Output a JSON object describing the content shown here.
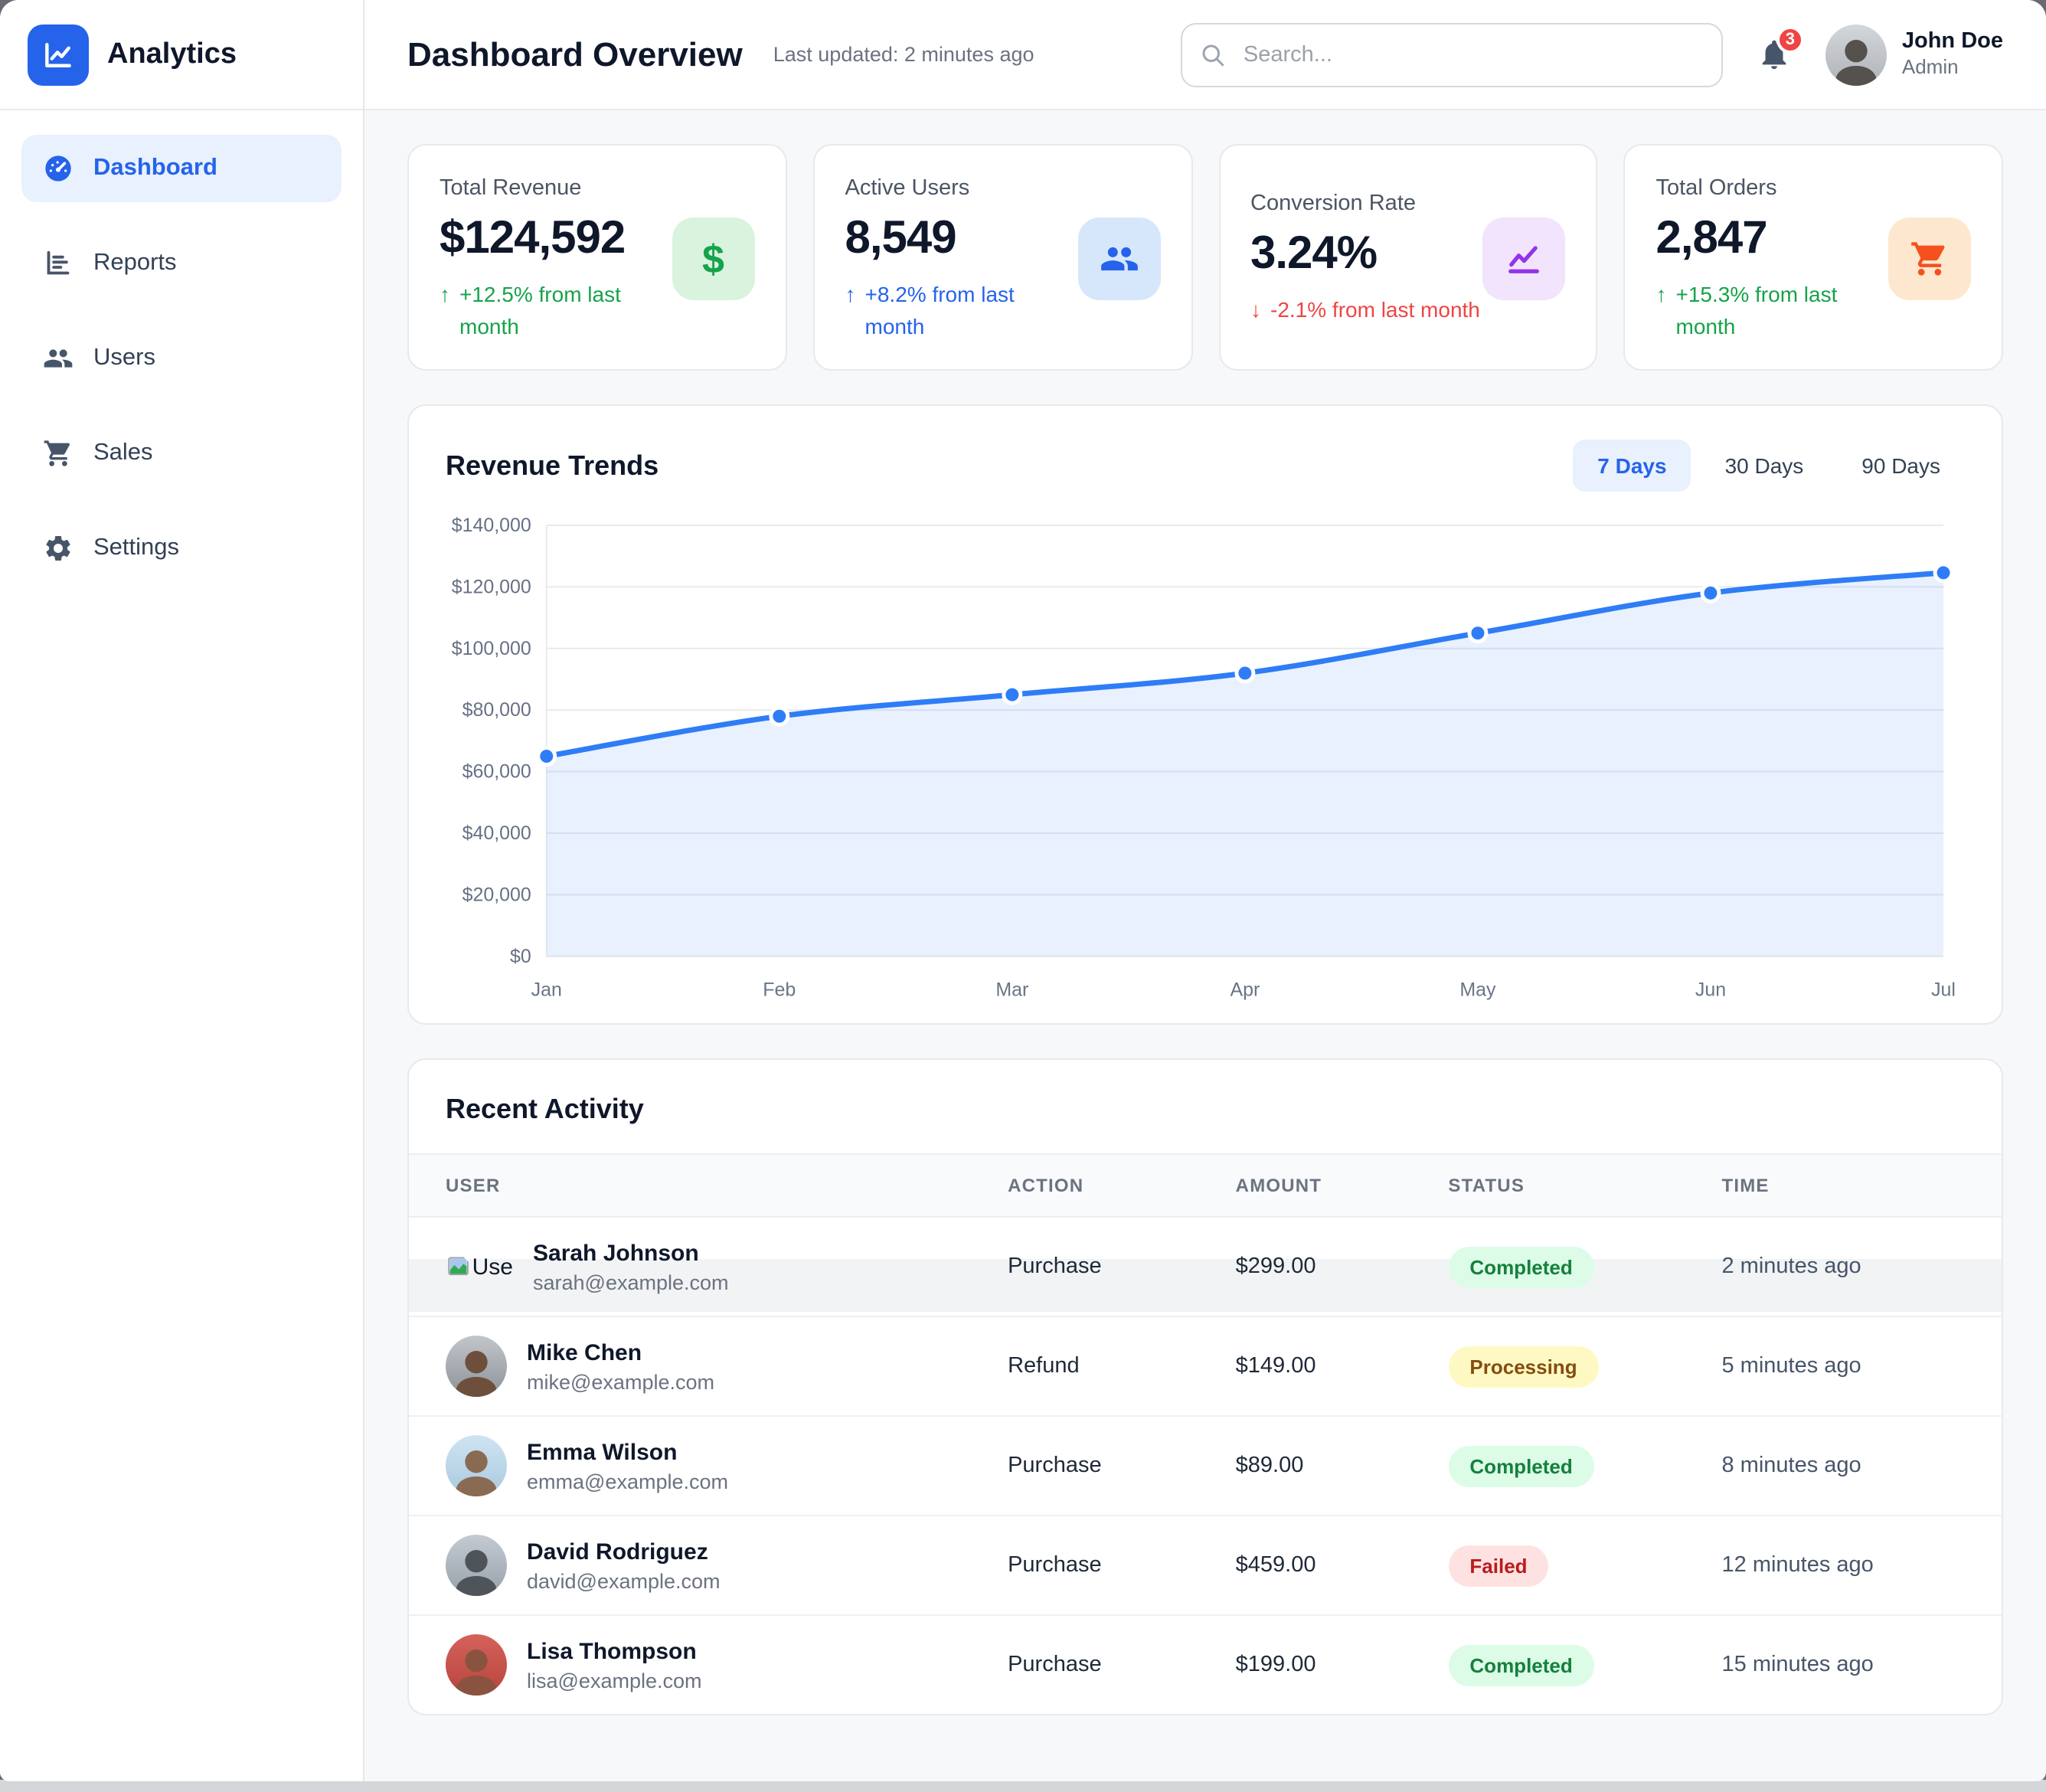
{
  "app": {
    "brand": "Analytics"
  },
  "sidebar": {
    "items": [
      {
        "label": "Dashboard",
        "icon": "gauge-icon",
        "active": true
      },
      {
        "label": "Reports",
        "icon": "bar-chart-icon",
        "active": false
      },
      {
        "label": "Users",
        "icon": "users-icon",
        "active": false
      },
      {
        "label": "Sales",
        "icon": "cart-icon",
        "active": false
      },
      {
        "label": "Settings",
        "icon": "gear-icon",
        "active": false
      }
    ]
  },
  "header": {
    "title": "Dashboard Overview",
    "last_updated": "Last updated: 2 minutes ago",
    "search_placeholder": "Search...",
    "notification_count": "3",
    "user": {
      "name": "John Doe",
      "role": "Admin"
    }
  },
  "stats": [
    {
      "label": "Total Revenue",
      "value": "$124,592",
      "direction": "up",
      "change": "+12.5% from last month",
      "change_color": "#16a34a",
      "icon": "dollar-icon",
      "icon_color": "#16a34a",
      "icon_bg": "#d9f3de"
    },
    {
      "label": "Active Users",
      "value": "8,549",
      "direction": "up",
      "change": "+8.2% from last month",
      "change_color": "#2563eb",
      "icon": "users-icon",
      "icon_color": "#2563eb",
      "icon_bg": "#d7e7fb"
    },
    {
      "label": "Conversion Rate",
      "value": "3.24%",
      "direction": "down",
      "change": "-2.1% from last month",
      "change_color": "#ef4444",
      "icon": "trend-icon",
      "icon_color": "#9333ea",
      "icon_bg": "#f1e4fc"
    },
    {
      "label": "Total Orders",
      "value": "2,847",
      "direction": "up",
      "change": "+15.3% from last month",
      "change_color": "#16a34a",
      "icon": "cart-icon",
      "icon_color": "#f4511e",
      "icon_bg": "#fde8cf"
    }
  ],
  "chart_section": {
    "title": "Revenue Trends",
    "tabs": [
      {
        "label": "7 Days",
        "active": true
      },
      {
        "label": "30 Days",
        "active": false
      },
      {
        "label": "90 Days",
        "active": false
      }
    ]
  },
  "chart_data": {
    "type": "area",
    "title": "Revenue Trends",
    "x": [
      "Jan",
      "Feb",
      "Mar",
      "Apr",
      "May",
      "Jun",
      "Jul"
    ],
    "series": [
      {
        "name": "Revenue",
        "values": [
          65000,
          78000,
          85000,
          92000,
          105000,
          118000,
          124592
        ]
      }
    ],
    "ylim": [
      0,
      140000
    ],
    "ytick_step": 20000,
    "ytick_format": "$#,###",
    "grid": true,
    "legend": "none",
    "line_color": "#2e7df6",
    "area_color": "#3b82f6"
  },
  "activity": {
    "title": "Recent Activity",
    "columns": [
      "USER",
      "ACTION",
      "AMOUNT",
      "STATUS",
      "TIME"
    ],
    "rows": [
      {
        "name": "Sarah Johnson",
        "email": "sarah@example.com",
        "action": "Purchase",
        "amount": "$299.00",
        "status": "Completed",
        "time": "2 minutes ago",
        "avatar": "broken-image",
        "avatar_alt_fragment": "Use"
      },
      {
        "name": "Mike Chen",
        "email": "mike@example.com",
        "action": "Refund",
        "amount": "$149.00",
        "status": "Processing",
        "time": "5 minutes ago",
        "avatar": "photo"
      },
      {
        "name": "Emma Wilson",
        "email": "emma@example.com",
        "action": "Purchase",
        "amount": "$89.00",
        "status": "Completed",
        "time": "8 minutes ago",
        "avatar": "photo"
      },
      {
        "name": "David Rodriguez",
        "email": "david@example.com",
        "action": "Purchase",
        "amount": "$459.00",
        "status": "Failed",
        "time": "12 minutes ago",
        "avatar": "photo"
      },
      {
        "name": "Lisa Thompson",
        "email": "lisa@example.com",
        "action": "Purchase",
        "amount": "$199.00",
        "status": "Completed",
        "time": "15 minutes ago",
        "avatar": "photo"
      }
    ]
  }
}
